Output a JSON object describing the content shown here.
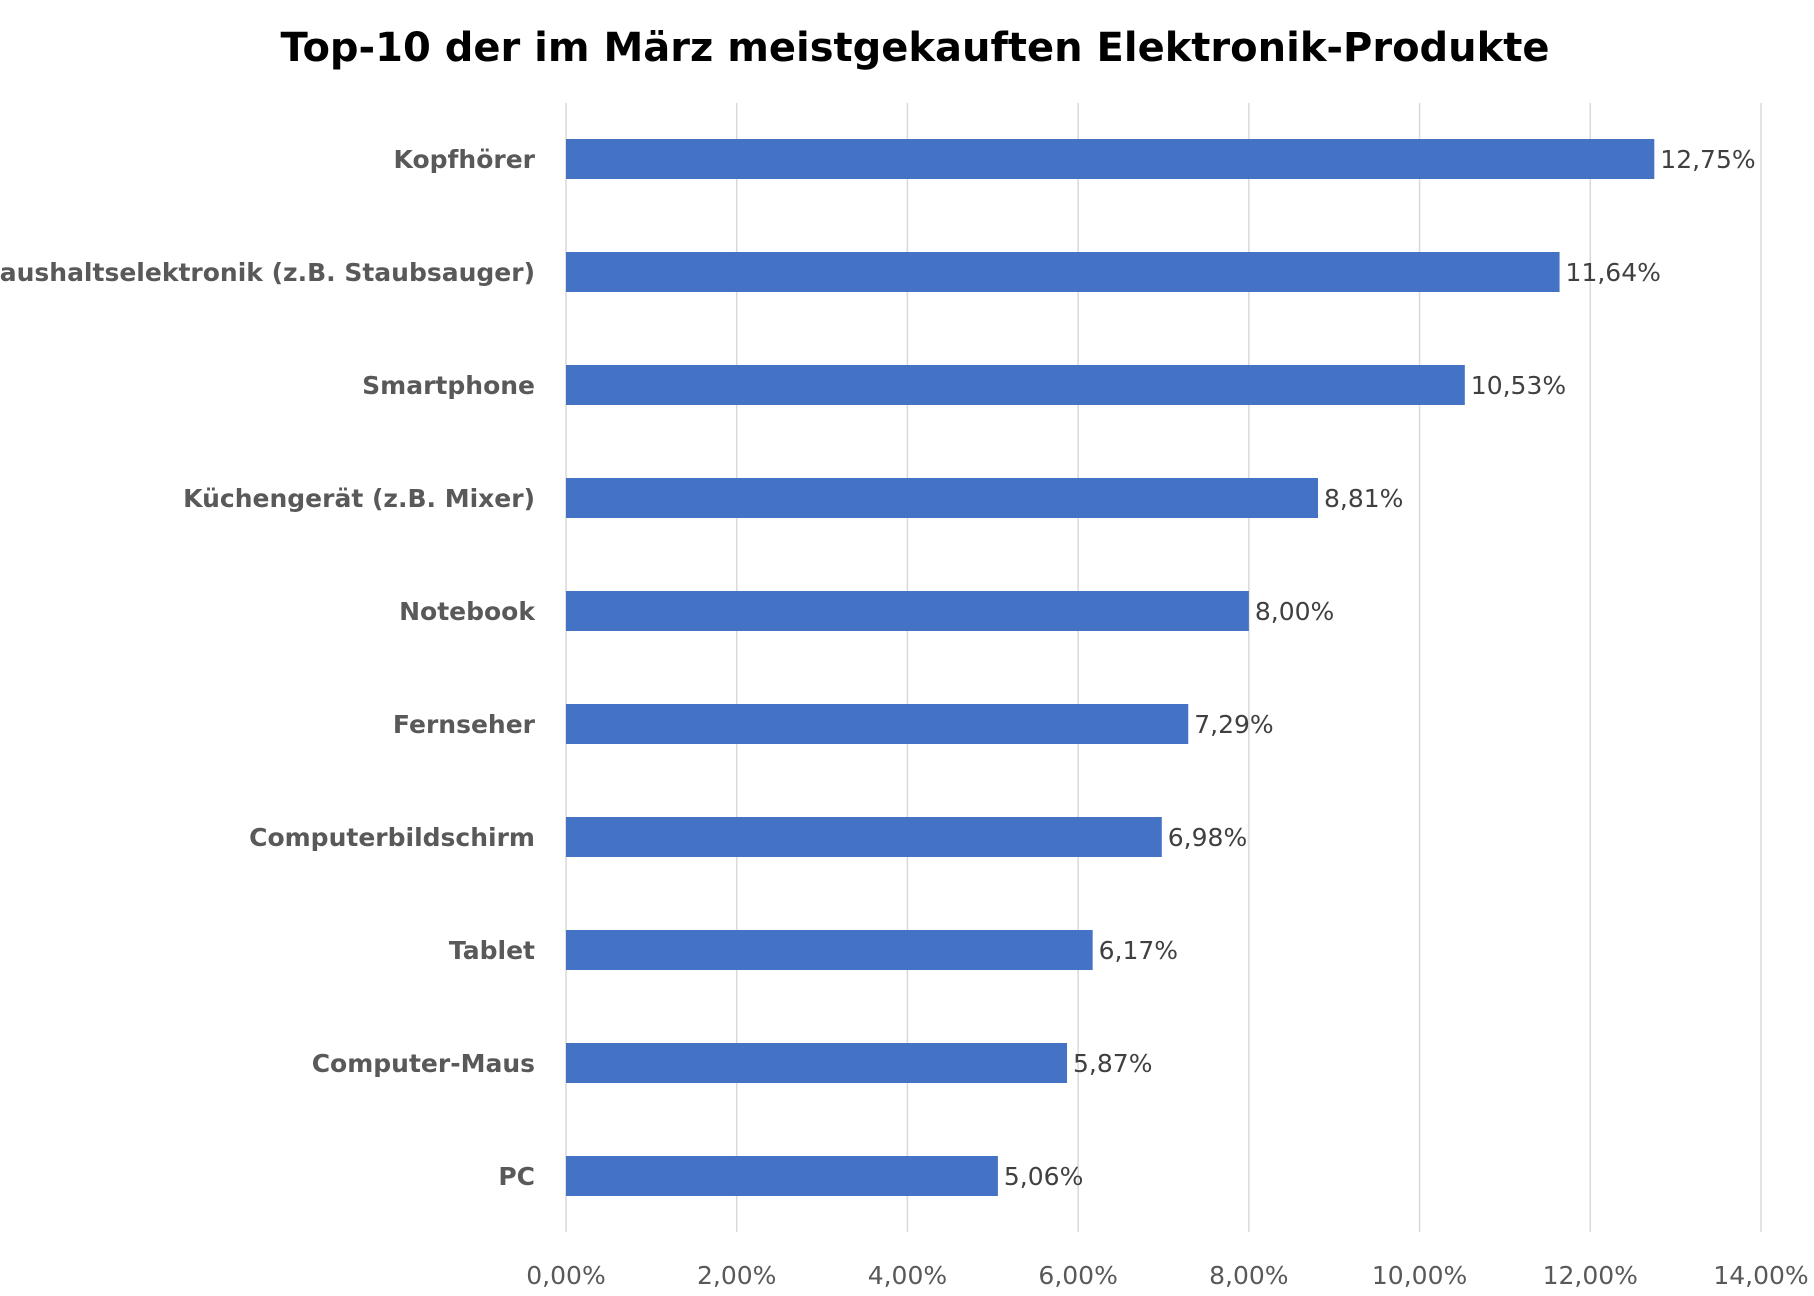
{
  "chart_data": {
    "type": "bar",
    "orientation": "horizontal",
    "title": "Top-10 der im März meistgekauften Elektronik-Produkte",
    "categories": [
      "Kopfhörer",
      "Haushaltselektronik (z.B. Staubsauger)",
      "Smartphone",
      "Küchengerät (z.B. Mixer)",
      "Notebook",
      "Fernseher",
      "Computerbildschirm",
      "Tablet",
      "Computer-Maus",
      "PC"
    ],
    "values": [
      12.75,
      11.64,
      10.53,
      8.81,
      8.0,
      7.29,
      6.98,
      6.17,
      5.87,
      5.06
    ],
    "value_labels": [
      "12,75%",
      "11,64%",
      "10,53%",
      "8,81%",
      "8,00%",
      "7,29%",
      "6,98%",
      "6,17%",
      "5,87%",
      "5,06%"
    ],
    "xlim": [
      0,
      14
    ],
    "x_ticks": [
      0,
      2,
      4,
      6,
      8,
      10,
      12,
      14
    ],
    "x_tick_labels": [
      "0,00%",
      "2,00%",
      "4,00%",
      "6,00%",
      "8,00%",
      "10,00%",
      "12,00%",
      "14,00%"
    ],
    "xlabel": "",
    "ylabel": "",
    "grid": "vertical",
    "legend": "none",
    "colors": {
      "bar": "#4472C4",
      "gridline": "#D9D9D9",
      "category_text": "#595959",
      "value_text": "#404040",
      "title_text": "#000000"
    }
  }
}
